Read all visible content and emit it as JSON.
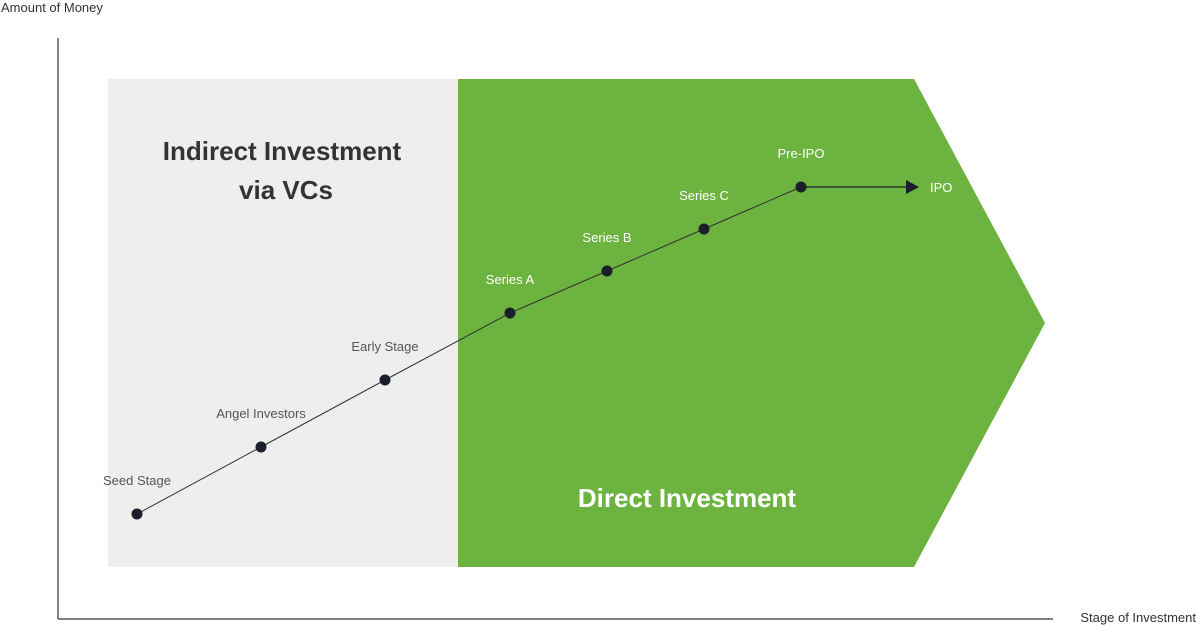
{
  "axes": {
    "y_label": "Amount of Money",
    "x_label": "Stage of Investment"
  },
  "regions": {
    "indirect": {
      "line1": "Indirect Investment",
      "line2": "via VCs",
      "color": "#eeeeee"
    },
    "direct": {
      "label": "Direct Investment",
      "color": "#6db33f"
    }
  },
  "stages": [
    {
      "label": "Seed Stage",
      "region": "indirect"
    },
    {
      "label": "Angel Investors",
      "region": "indirect"
    },
    {
      "label": "Early Stage",
      "region": "indirect"
    },
    {
      "label": "Series A",
      "region": "direct"
    },
    {
      "label": "Series B",
      "region": "direct"
    },
    {
      "label": "Series C",
      "region": "direct"
    },
    {
      "label": "Pre-IPO",
      "region": "direct"
    }
  ],
  "final_stage": "IPO",
  "colors": {
    "dot": "#1a1f2b",
    "text_dark": "#333333",
    "text_gray": "#555555",
    "text_light": "#ffffff"
  }
}
